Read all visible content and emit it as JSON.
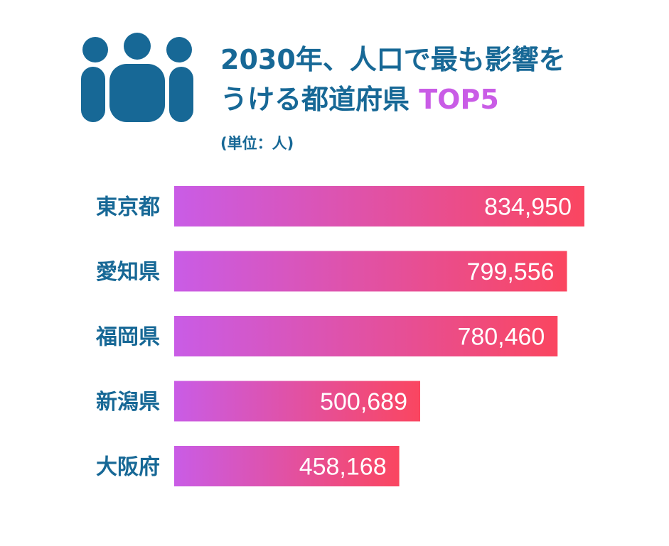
{
  "header": {
    "title_line1": "2030年、人口で最も影響を",
    "title_line2_prefix": "うける都道府県",
    "title_line2_accent": "TOP5",
    "unit": "(単位：人)"
  },
  "colors": {
    "text_primary": "#176896",
    "accent": "#c95ce6",
    "bar_gradient_start": "#c95ce6",
    "bar_gradient_end": "#fa4660"
  },
  "icons": {
    "header_icon": "people-group-icon"
  },
  "chart_data": {
    "type": "bar",
    "orientation": "horizontal",
    "categories": [
      "東京都",
      "愛知県",
      "福岡県",
      "新潟県",
      "大阪府"
    ],
    "values": [
      834950,
      799556,
      780460,
      500689,
      458168
    ],
    "value_labels": [
      "834,950",
      "799,556",
      "780,460",
      "500,689",
      "458,168"
    ],
    "title": "2030年、人口で最も影響をうける都道府県 TOP5",
    "unit": "(単位：人)",
    "xlim": [
      0,
      834950
    ],
    "grid": false,
    "legend": "none"
  }
}
